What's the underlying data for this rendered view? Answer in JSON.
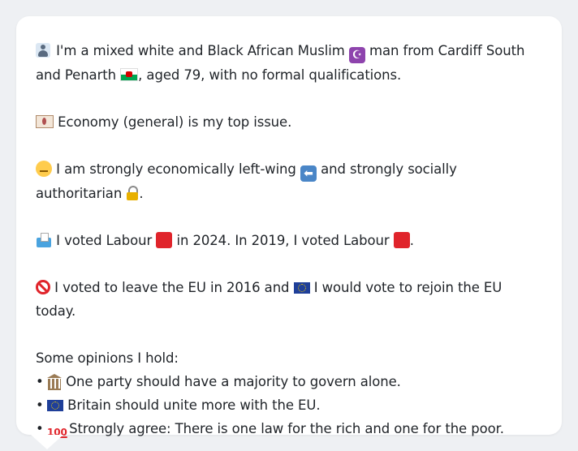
{
  "profile": {
    "line1_a": "I'm a mixed white and Black African Muslim",
    "line1_b": "man from Cardiff South and Penarth",
    "line1_c": ", aged 79, with no formal qualifications.",
    "issue": "Economy (general) is my top issue.",
    "ideology_a": "I am strongly economically left-wing",
    "ideology_b": "and strongly socially authoritarian",
    "ideology_c": ".",
    "vote_a": "I voted Labour",
    "vote_b": "in 2024. In 2019, I voted Labour",
    "vote_c": ".",
    "eu_a": "I voted to leave the EU in 2016 and",
    "eu_b": "I would vote to rejoin the EU today.",
    "opinions_heading": "Some opinions I hold:",
    "opinions": [
      "One party should have a majority to govern alone.",
      "Britain should unite more with the EU.",
      "Strongly agree: There is one law for the rich and one for the poor."
    ],
    "bullet": "•"
  },
  "icons": {
    "person": "person-icon",
    "crescent": "star-and-crescent-icon",
    "wales_flag": "wales-flag-icon",
    "money": "money-icon",
    "thinking": "thinking-face-icon",
    "left_arrow": "left-arrow-icon",
    "lock": "lock-icon",
    "ballot": "ballot-box-icon",
    "red_square": "red-square-icon",
    "prohibited": "prohibited-icon",
    "eu_flag": "eu-flag-icon",
    "classical_building": "classical-building-icon",
    "hundred": "hundred-points-icon"
  },
  "colors": {
    "background": "#eef0f3",
    "card": "#ffffff",
    "text": "#1f2328",
    "labour_red": "#e0242b",
    "crescent_purple": "#8e44ad"
  }
}
